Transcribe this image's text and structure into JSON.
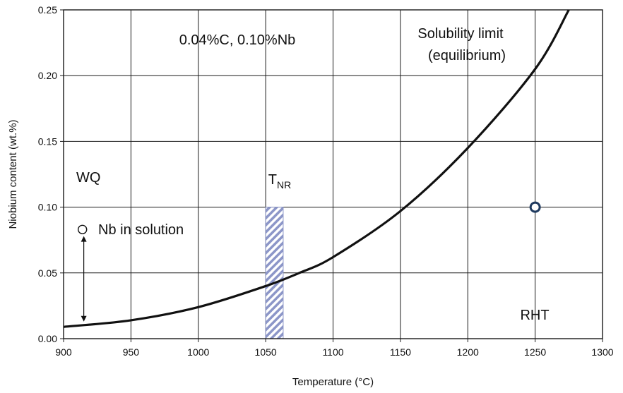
{
  "chart_data": {
    "type": "line",
    "title": "",
    "xlabel": "Temperature (°C)",
    "ylabel": "Niobium content (wt.%)",
    "xlim": [
      900,
      1300
    ],
    "ylim": [
      0,
      0.25
    ],
    "grid": true,
    "x_ticks": [
      "900",
      "950",
      "1000",
      "1050",
      "1100",
      "1150",
      "1200",
      "1250",
      "1300"
    ],
    "y_ticks": [
      "0.00",
      "0.05",
      "0.10",
      "0.15",
      "0.20",
      "0.25"
    ],
    "series": [
      {
        "name": "Solubility limit (equilibrium)",
        "x": [
          900,
          950,
          1000,
          1050,
          1075,
          1100,
          1150,
          1200,
          1250,
          1275
        ],
        "y": [
          0.009,
          0.014,
          0.024,
          0.04,
          0.05,
          0.062,
          0.097,
          0.145,
          0.205,
          0.25
        ]
      }
    ],
    "points": [
      {
        "label": "RHT",
        "x": 1250,
        "y": 0.1,
        "color": "#1f3a5f"
      },
      {
        "label": "Nb in solution",
        "x": 914,
        "y": 0.083,
        "color": "#ffffff"
      }
    ],
    "region": {
      "label_main": "T",
      "label_sub": "NR",
      "x0": 1050,
      "x1": 1063,
      "y0": 0,
      "y1": 0.1,
      "color": "#8c96c8"
    },
    "arrow": {
      "x": 915,
      "y0": 0.013,
      "y1": 0.078
    },
    "annotations": {
      "composition": "0.04%C, 0.10%Nb",
      "solubility_line1": "Solubility limit",
      "solubility_line2": "(equilibrium)",
      "wq": "WQ",
      "nb_in_solution": "Nb in solution",
      "rht": "RHT"
    },
    "colors": {
      "curve": "#111111",
      "grid": "#1a1a1a",
      "marker_edge": "#1f3a5f"
    }
  }
}
